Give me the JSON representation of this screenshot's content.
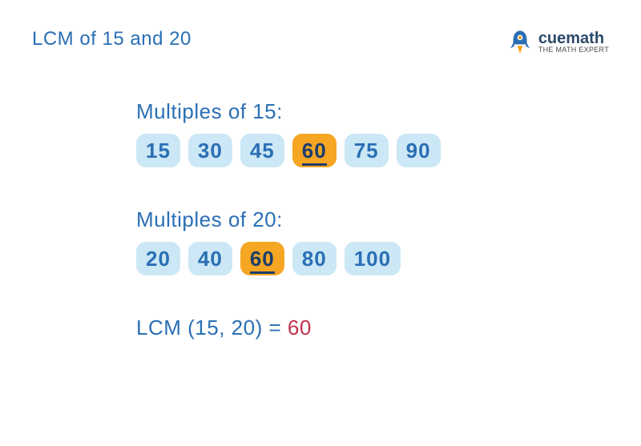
{
  "title": "LCM of 15 and 20",
  "logo": {
    "brand": "cuemath",
    "tagline": "THE MATH EXPERT"
  },
  "sections": [
    {
      "label": "Multiples of 15:",
      "chips": [
        {
          "value": "15",
          "highlight": false
        },
        {
          "value": "30",
          "highlight": false
        },
        {
          "value": "45",
          "highlight": false
        },
        {
          "value": "60",
          "highlight": true
        },
        {
          "value": "75",
          "highlight": false
        },
        {
          "value": "90",
          "highlight": false
        }
      ]
    },
    {
      "label": "Multiples of 20:",
      "chips": [
        {
          "value": "20",
          "highlight": false
        },
        {
          "value": "40",
          "highlight": false
        },
        {
          "value": "60",
          "highlight": true
        },
        {
          "value": "80",
          "highlight": false
        },
        {
          "value": "100",
          "highlight": false
        }
      ]
    }
  ],
  "result": {
    "label": "LCM (15, 20) = ",
    "value": "60"
  },
  "colors": {
    "chip_normal_bg": "#cce7f5",
    "chip_normal_fg": "#2a6fb5",
    "chip_highlight_bg": "#f5a623",
    "chip_highlight_fg": "#1a3d6b",
    "title_color": "#2a6fb5",
    "result_value_color": "#c4304b"
  }
}
